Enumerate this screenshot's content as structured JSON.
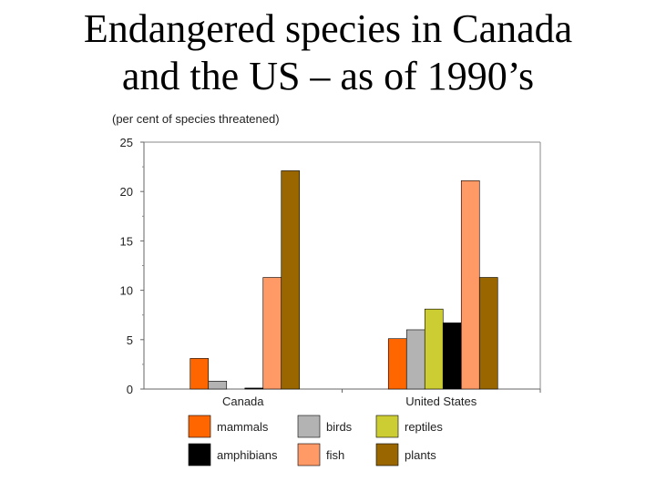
{
  "title_line1": "Endangered species in Canada",
  "title_line2": "and the US – as of 1990’s",
  "chart_data": {
    "type": "bar",
    "title": "Endangered species in Canada and the US – as of 1990’s",
    "ylabel": "(per cent of species threatened)",
    "xlabel": "",
    "ylim": [
      0,
      25
    ],
    "yticks": [
      0,
      5,
      10,
      15,
      20,
      25
    ],
    "categories": [
      "Canada",
      "United States"
    ],
    "series": [
      {
        "name": "mammals",
        "values": [
          3.1,
          5.1
        ],
        "color": "#ff6600"
      },
      {
        "name": "birds",
        "values": [
          0.8,
          6.0
        ],
        "color": "#b3b3b3"
      },
      {
        "name": "reptiles",
        "values": [
          0,
          8.1
        ],
        "color": "#cccc33"
      },
      {
        "name": "amphibians",
        "values": [
          0.1,
          6.7
        ],
        "color": "#000000"
      },
      {
        "name": "fish",
        "values": [
          11.3,
          21.1
        ],
        "color": "#ff9966"
      },
      {
        "name": "plants",
        "values": [
          22.1,
          11.3
        ],
        "color": "#996600"
      }
    ],
    "legend": "bottom",
    "grid": false
  }
}
